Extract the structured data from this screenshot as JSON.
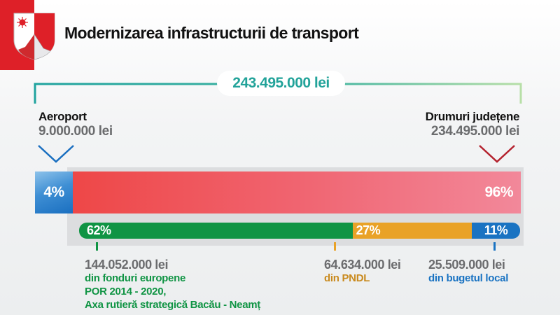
{
  "header": {
    "title": "Modernizarea infrastructurii de transport",
    "logo": "coat-of-arms (sun, crescent moon, mountain)",
    "brand_color": "#de2028"
  },
  "chart_data": {
    "type": "bar",
    "title": "Modernizarea infrastructurii de transport",
    "total": {
      "label": "243.495.000 lei",
      "value": 243495000,
      "color": "#23a39a"
    },
    "categories_split": [
      {
        "name": "Aeroport",
        "amount_label": "9.000.000 lei",
        "amount": 9000000,
        "percent_label": "4%",
        "percent": 4,
        "color": "#3f8fd4"
      },
      {
        "name": "Drumuri județene",
        "amount_label": "234.495.000 lei",
        "amount": 234495000,
        "percent_label": "96%",
        "percent": 96,
        "color": "#ee4747"
      }
    ],
    "funding_split": [
      {
        "percent_label": "62%",
        "percent": 62,
        "amount_label": "144.052.000 lei",
        "amount": 144052000,
        "source_lines": [
          "din fonduri europene",
          "POR 2014 - 2020,",
          "Axa rutieră strategică Bacău - Neamț"
        ],
        "color": "#109444"
      },
      {
        "percent_label": "27%",
        "percent": 27,
        "amount_label": "64.634.000 lei",
        "amount": 64634000,
        "source_lines": [
          "din PNDL"
        ],
        "color": "#e9a227",
        "text_color": "#c98a1e"
      },
      {
        "percent_label": "11%",
        "percent": 11,
        "amount_label": "25.509.000 lei",
        "amount": 25509000,
        "source_lines": [
          "din bugetul local"
        ],
        "color": "#1a73c2"
      }
    ]
  }
}
